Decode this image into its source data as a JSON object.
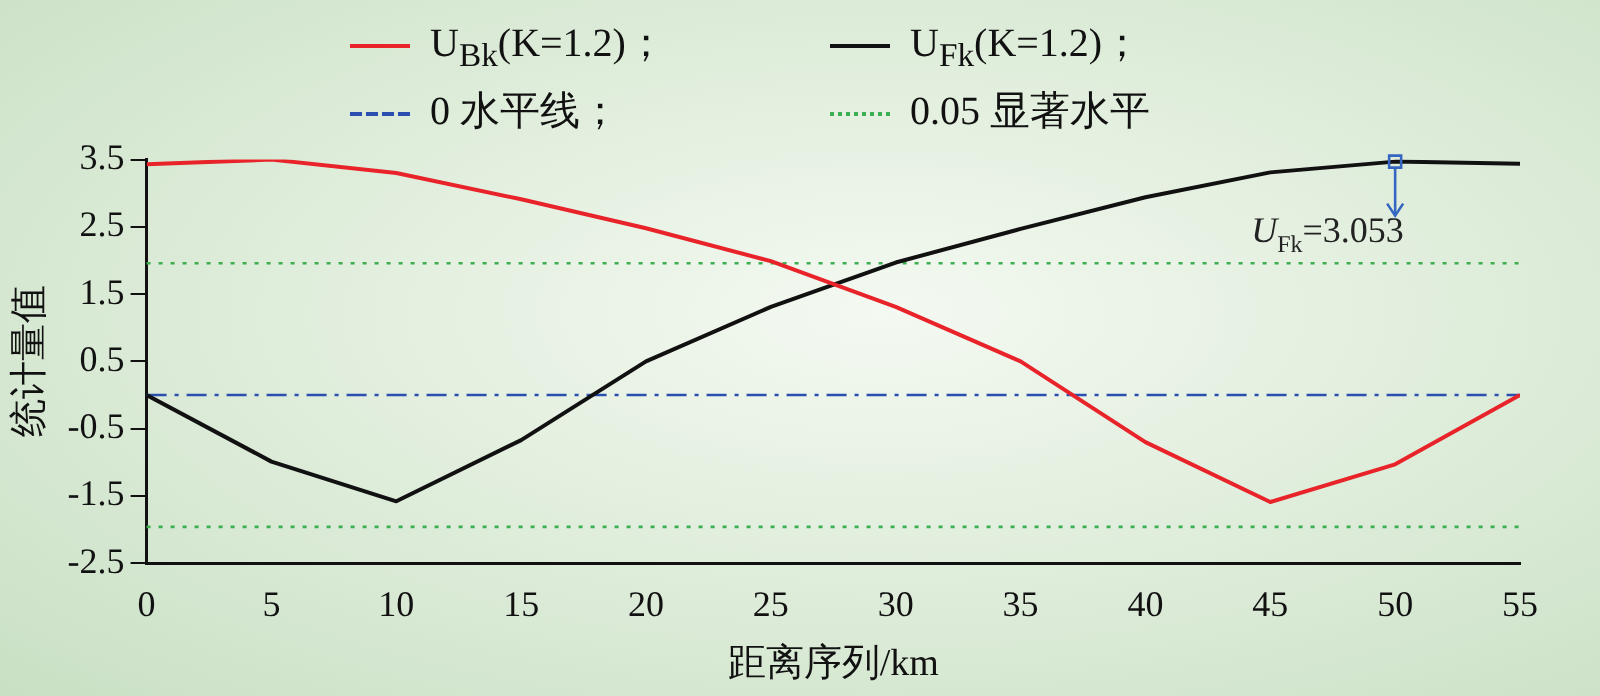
{
  "chart_data": {
    "type": "line",
    "xlabel": "距离序列/km",
    "ylabel": "统计量值",
    "x": [
      0,
      5,
      10,
      15,
      20,
      25,
      30,
      35,
      40,
      45,
      50,
      55
    ],
    "series": [
      {
        "name": "U$_{Bk}$(K=1.2)；",
        "color": "#e8242a",
        "values": [
          3.43,
          3.5,
          3.3,
          2.91,
          2.48,
          1.99,
          1.31,
          0.5,
          -0.7,
          -1.59,
          -1.03,
          0
        ]
      },
      {
        "name": "U$_{Fk}$(K=1.2)；",
        "color": "#111111",
        "values": [
          0,
          -0.99,
          -1.58,
          -0.67,
          0.5,
          1.31,
          1.97,
          2.47,
          2.94,
          3.31,
          3.47,
          3.44
        ]
      }
    ],
    "ref_lines": [
      {
        "axis": "y",
        "value": 0,
        "label": "0 水平线；",
        "color": "#2a4fb0",
        "line_style": "dashed"
      },
      {
        "axis": "y",
        "value": 1.96,
        "label": "0.05 显著水平",
        "color": "#3cb050",
        "line_style": "dotted"
      },
      {
        "axis": "y",
        "value": -1.96,
        "color": "#3cb050",
        "line_style": "dotted"
      }
    ],
    "annotations": [
      {
        "text": "U$_{Fk}$=3.053",
        "x": 50,
        "y": 3.47
      }
    ],
    "xlim": [
      0,
      55
    ],
    "xticks": [
      0,
      5,
      10,
      15,
      20,
      25,
      30,
      35,
      40,
      45,
      50,
      55
    ],
    "ylim": [
      -2.5,
      3.5
    ],
    "yticks": [
      3.5,
      2.5,
      1.5,
      0.5,
      -0.5,
      -1.5,
      -2.5
    ],
    "grid": false,
    "legend": "top",
    "marker": "none",
    "line_style": "solid"
  }
}
